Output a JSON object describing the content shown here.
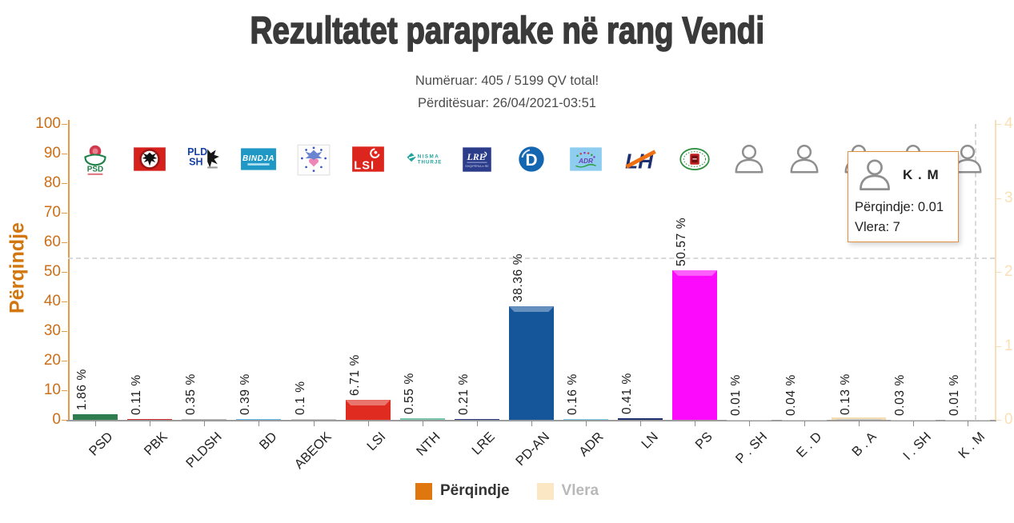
{
  "header": {
    "title": "Rezultatet paraprake në rang Vendi",
    "counted": "Numëruar: 405 / 5199 QV total!",
    "updated": "Përditësuar: 26/04/2021-03:51"
  },
  "legend": {
    "items": [
      {
        "label": "Përqindje",
        "active": true
      },
      {
        "label": "Vlera",
        "active": false
      }
    ]
  },
  "tooltip": {
    "party": "K . M",
    "perqindje_line": "Përqindje: 0.01",
    "vlera_line": "Vlera: 7"
  },
  "colors": {
    "accent_orange": "#e0770e",
    "cream": "#fbe7c4",
    "axis_orange_text": "#cd6e17",
    "axis_cream_text": "#fbe0b4",
    "axis_bottom_gray": "#9c9c9c",
    "tooltip_border": "#e09040",
    "title_gray": "#3a3a3a"
  },
  "chart_data": {
    "type": "bar",
    "title": "Rezultatet paraprake në rang Vendi",
    "categories": [
      "PSD",
      "PBK",
      "PLDSH",
      "BD",
      "ABEOK",
      "LSI",
      "NTH",
      "LRE",
      "PD-AN",
      "ADR",
      "LN",
      "PS",
      "P . SH",
      "E . D",
      "B . A",
      "I . SH",
      "K . M"
    ],
    "series": [
      {
        "name": "Përqindje",
        "axis": "left",
        "color": "#e0770e",
        "values": [
          1.86,
          0.11,
          0.35,
          0.39,
          0.1,
          6.71,
          0.55,
          0.21,
          38.36,
          0.16,
          0.41,
          50.57,
          0.01,
          0.04,
          0.13,
          0.03,
          0.01
        ]
      },
      {
        "name": "Vlera",
        "axis": "right",
        "color": "#fbe7c4",
        "hidden": true,
        "values": [
          null,
          null,
          null,
          null,
          null,
          null,
          null,
          null,
          null,
          null,
          null,
          null,
          null,
          null,
          null,
          null,
          7
        ]
      }
    ],
    "value_labels": [
      "1.86 %",
      "0.11 %",
      "0.35 %",
      "0.39 %",
      "0.1 %",
      "6.71 %",
      "0.55 %",
      "0.21 %",
      "38.36 %",
      "0.16 %",
      "0.41 %",
      "50.57 %",
      "0.01 %",
      "0.04 %",
      "0.13 %",
      "0.03 %",
      "0.01 %"
    ],
    "bar_colors": [
      "#2f7d4e",
      "#cc2a2a",
      "#b5b5b5",
      "#63b8e8",
      "#c9c9c9",
      "#df2b20",
      "#79c2ac",
      "#26337a",
      "#15569b",
      "#7ec8e8",
      "#1c2e6b",
      "#fb0afb",
      "#cccccc",
      "#cccccc",
      "#cccccc",
      "#cccccc",
      "#cccccc"
    ],
    "logos": [
      "psd",
      "pbk",
      "pldsh",
      "bindja",
      "abeok",
      "lsi",
      "nisma-thurje",
      "lre",
      "pd",
      "adr",
      "ln",
      "ps",
      "avatar",
      "avatar",
      "avatar",
      "avatar",
      "avatar"
    ],
    "y_left": {
      "title": "Përqindje",
      "min": 0,
      "max": 100,
      "step": 10
    },
    "y_right": {
      "title": "Vlera",
      "min": 0,
      "max": 4,
      "step": 1
    },
    "legend_position": "bottom",
    "grid": false,
    "cursor": {
      "category": "K . M",
      "y_left_value": 55
    },
    "vlera_remnant_category": "B . A"
  }
}
